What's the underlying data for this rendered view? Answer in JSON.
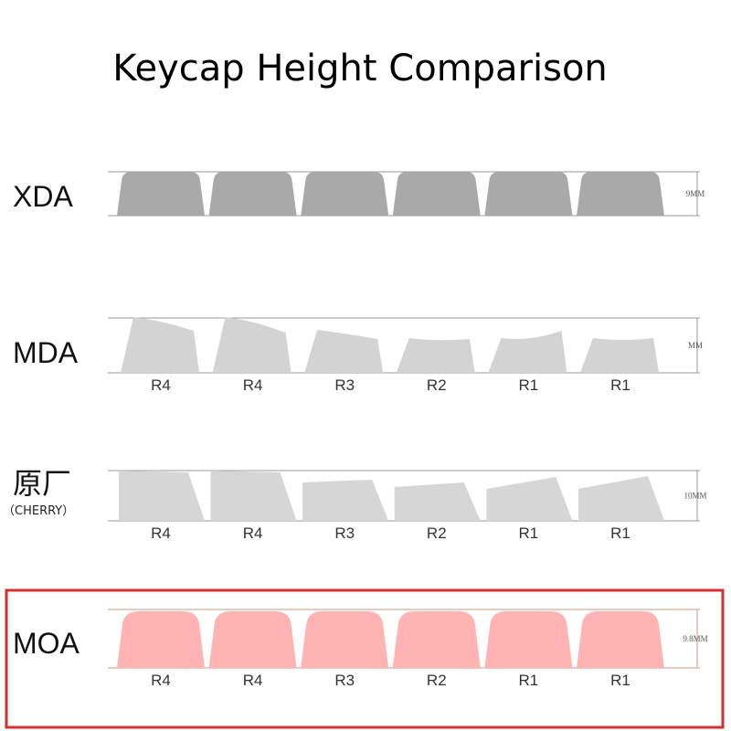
{
  "title": "Keycap Height Comparison",
  "profiles": [
    {
      "name": "XDA",
      "height": "9MM"
    },
    {
      "name": "MDA",
      "height": "MM",
      "rows": [
        "R4",
        "R4",
        "R3",
        "R2",
        "R1",
        "R1"
      ]
    },
    {
      "name": "原厂",
      "subtitle": "（CHERRY）",
      "height": "10MM",
      "rows": [
        "R4",
        "R4",
        "R3",
        "R2",
        "R1",
        "R1"
      ]
    },
    {
      "name": "MOA",
      "height": "9.8MM",
      "rows": [
        "R4",
        "R4",
        "R3",
        "R2",
        "R1",
        "R1"
      ]
    }
  ]
}
